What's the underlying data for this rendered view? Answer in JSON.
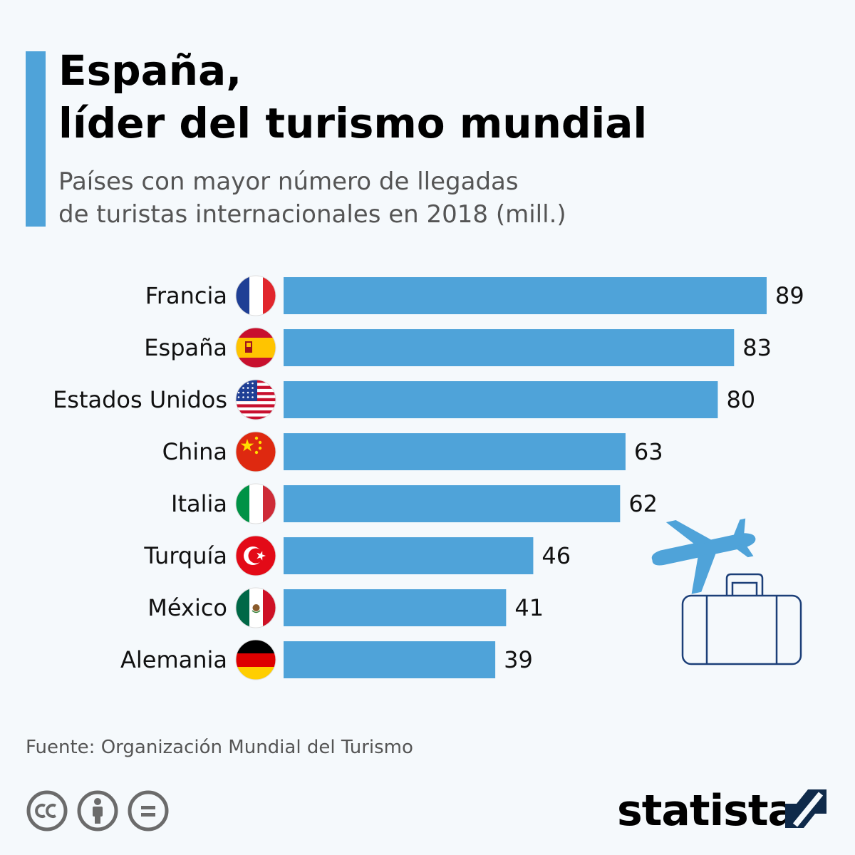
{
  "header": {
    "title_line1": "España,",
    "title_line2": "líder del turismo mundial",
    "subtitle_line1": "Países con mayor número de llegadas",
    "subtitle_line2": "de turistas internacionales en 2018 (mill.)"
  },
  "chart_data": {
    "type": "bar",
    "orientation": "horizontal",
    "categories": [
      "Francia",
      "España",
      "Estados Unidos",
      "China",
      "Italia",
      "Turquía",
      "México",
      "Alemania"
    ],
    "values": [
      89,
      83,
      80,
      63,
      62,
      46,
      41,
      39
    ],
    "flags": [
      "france-flag-icon",
      "spain-flag-icon",
      "usa-flag-icon",
      "china-flag-icon",
      "italy-flag-icon",
      "turkey-flag-icon",
      "mexico-flag-icon",
      "germany-flag-icon"
    ],
    "bar_color": "#4fa3d9",
    "xlim": [
      0,
      89
    ],
    "grid": false,
    "legend": "none"
  },
  "decorations": {
    "plane_icon": "airplane-icon",
    "suitcase_icon": "suitcase-icon",
    "plane_color": "#4fa3d9",
    "suitcase_color": "#1c3f78"
  },
  "footer": {
    "source": "Fuente: Organización Mundial del Turismo",
    "license_icons": [
      "cc-icon",
      "attribution-icon",
      "no-derivatives-icon"
    ],
    "logo_text": "statista",
    "logo_icon": "statista-logo-icon",
    "logo_color": "#0f2a4a"
  },
  "colors": {
    "accent": "#4fa3d9",
    "background": "#f5f9fc",
    "title": "#000000",
    "subtitle": "#555555"
  }
}
